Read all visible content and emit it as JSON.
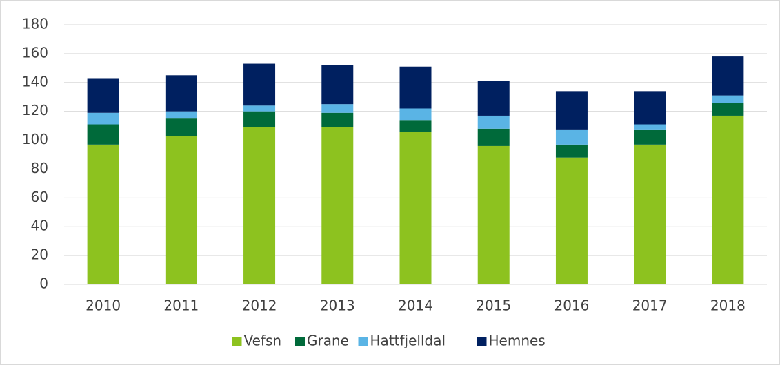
{
  "chart_data": {
    "type": "stacked_bar",
    "categories": [
      "2010",
      "2011",
      "2012",
      "2013",
      "2014",
      "2015",
      "2016",
      "2017",
      "2018"
    ],
    "series": [
      {
        "name": "Vefsn",
        "color": "#8dc21f",
        "values": [
          97,
          103,
          109,
          109,
          106,
          96,
          88,
          97,
          117
        ]
      },
      {
        "name": "Grane",
        "color": "#006a3a",
        "values": [
          14,
          12,
          11,
          10,
          8,
          12,
          9,
          10,
          9
        ]
      },
      {
        "name": "Hattfjelldal",
        "color": "#5ab4e5",
        "values": [
          8,
          5,
          4,
          6,
          8,
          9,
          10,
          4,
          5
        ]
      },
      {
        "name": "Hemnes",
        "color": "#002060",
        "values": [
          24,
          25,
          29,
          27,
          29,
          24,
          27,
          23,
          27
        ]
      }
    ],
    "ylim": [
      0,
      180
    ],
    "yticks": [
      0,
      20,
      40,
      60,
      80,
      100,
      120,
      140,
      160,
      180
    ],
    "grid": true,
    "legend": "bottom"
  }
}
